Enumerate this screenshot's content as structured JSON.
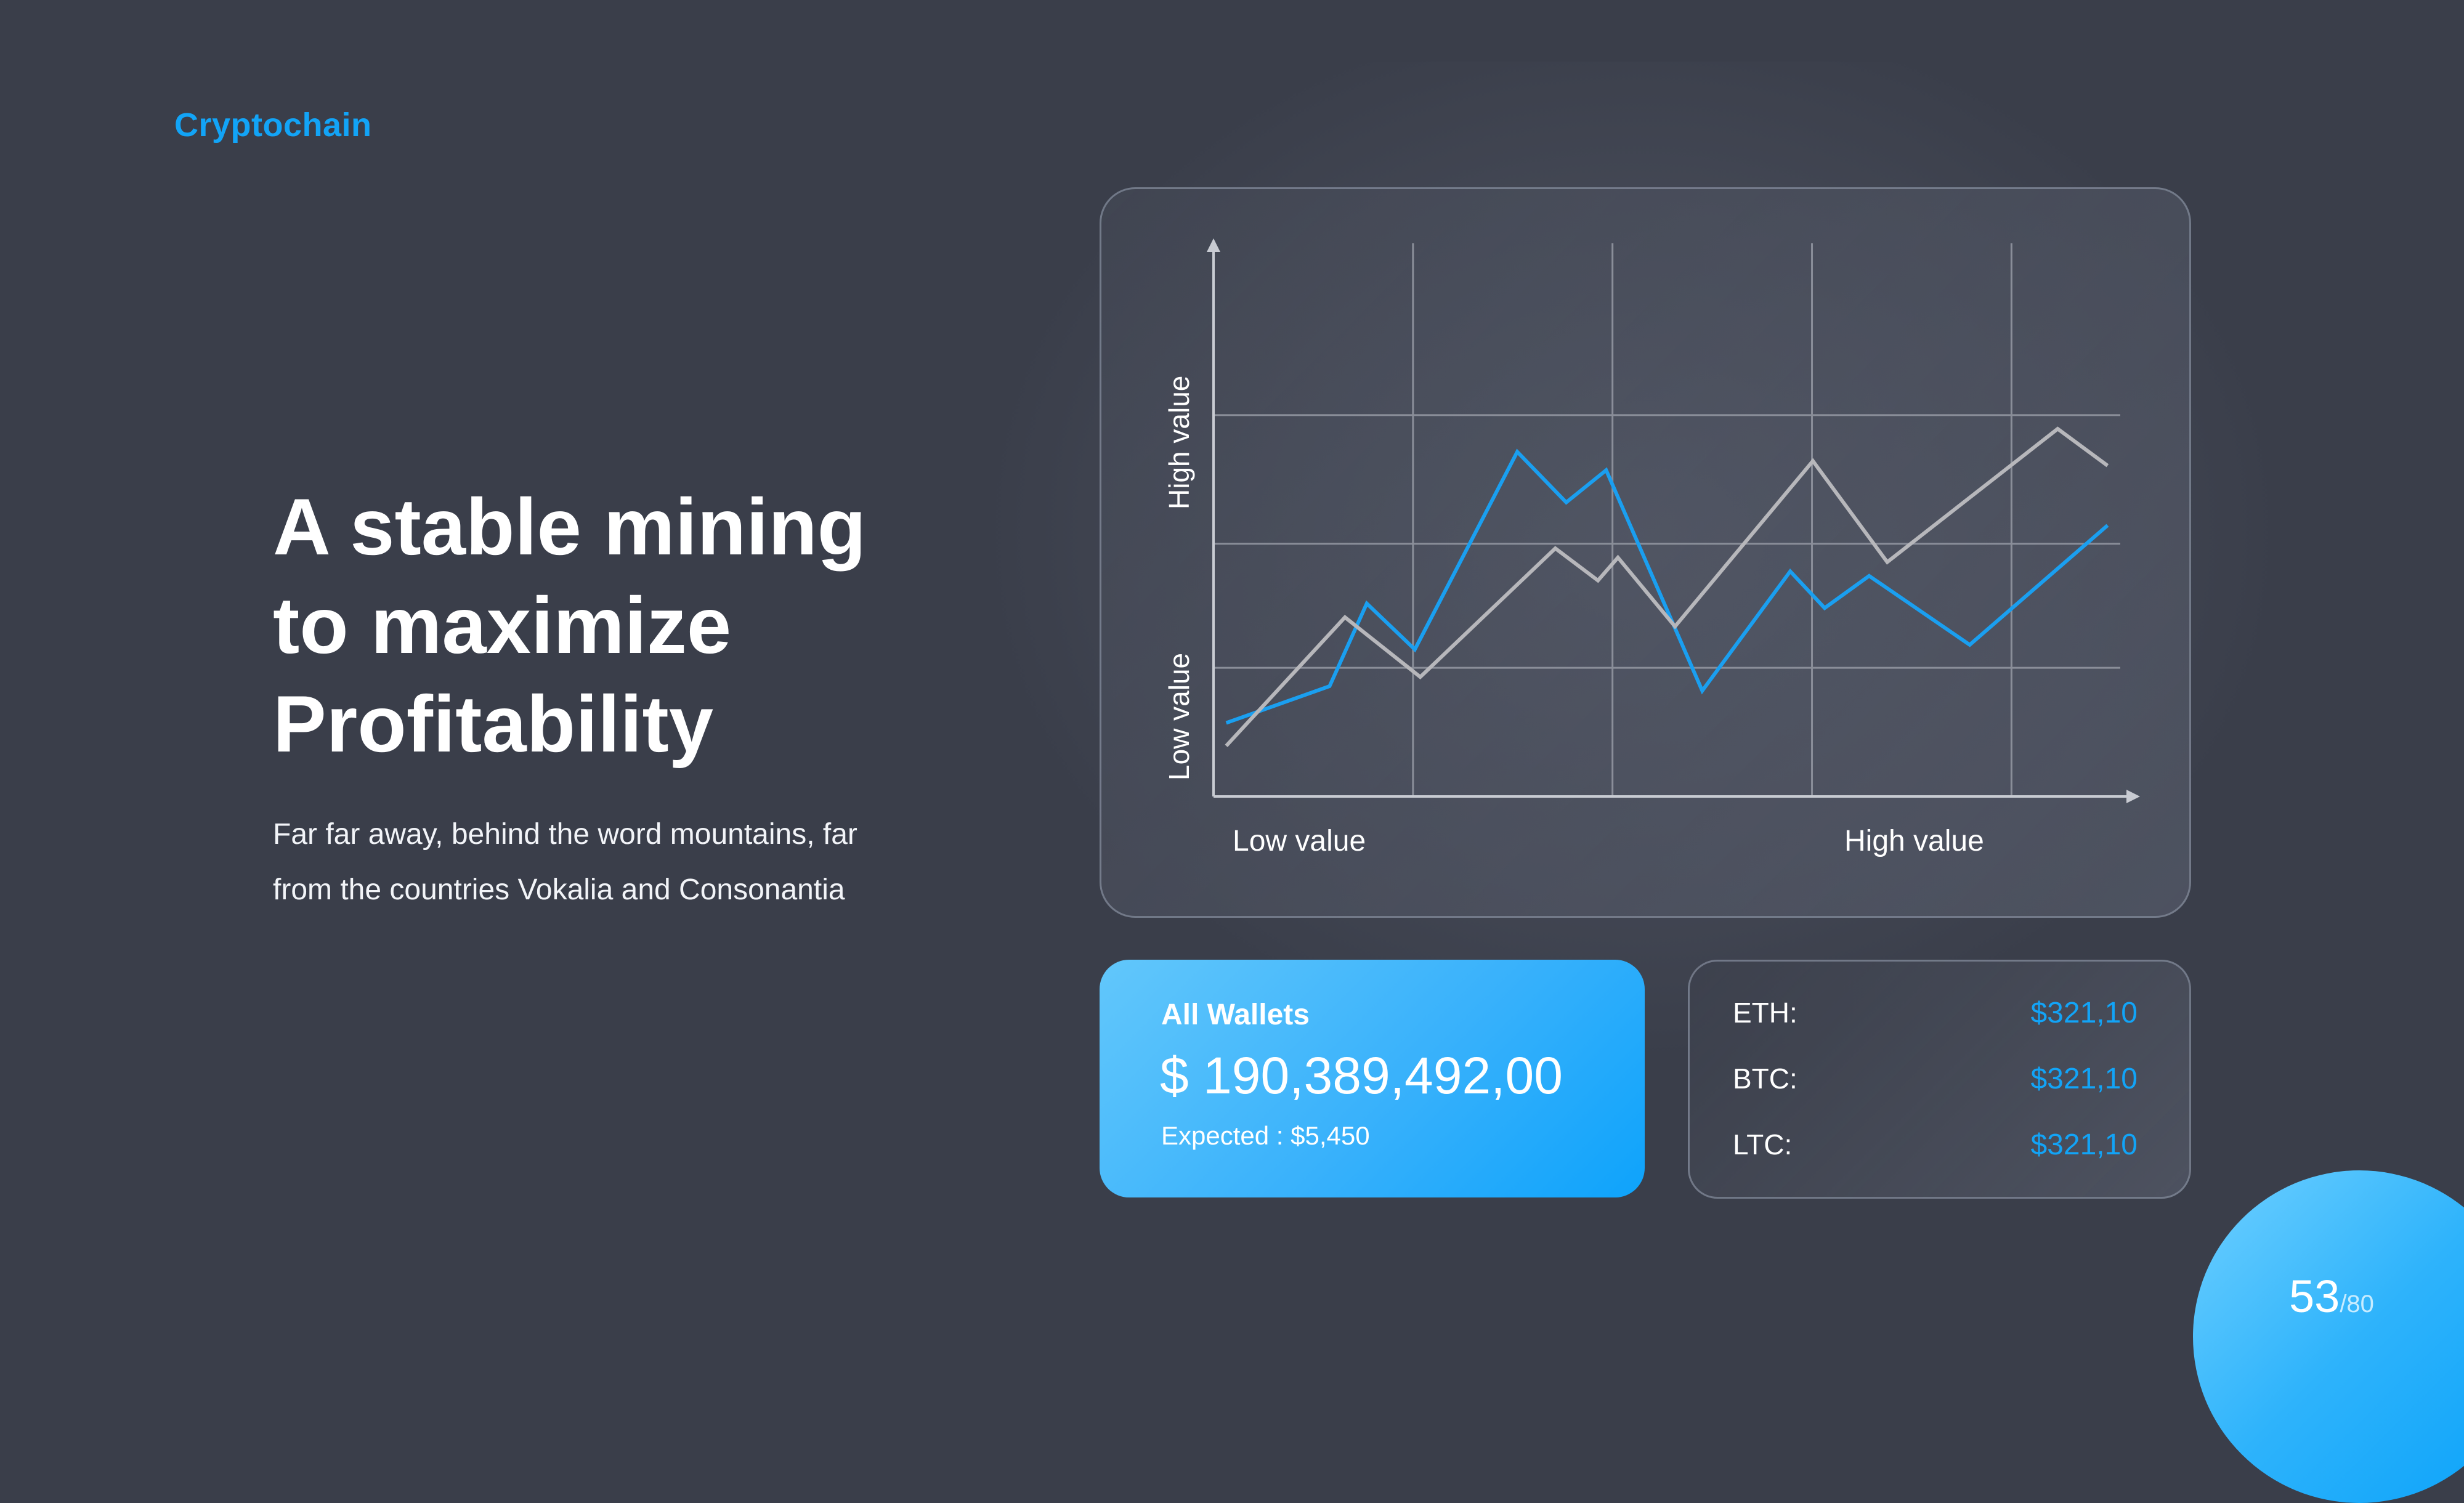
{
  "brand": "Cryptochain",
  "headline": [
    "A stable mining",
    "to maximize",
    "Profitability"
  ],
  "subtitle": [
    "Far far away, behind the word mountains, far",
    "from the countries Vokalia and Consonantia"
  ],
  "chart_data": {
    "type": "line",
    "xlabel_low": "Low value",
    "xlabel_high": "High value",
    "ylabel_low": "Low value",
    "ylabel_high": "High value",
    "xlim": [
      0,
      100
    ],
    "ylim": [
      0,
      100
    ],
    "grid": true,
    "series": [
      {
        "color": "#1a9ff0",
        "points": [
          [
            1.4,
            16
          ],
          [
            12.8,
            24
          ],
          [
            16.9,
            42
          ],
          [
            22.2,
            32
          ],
          [
            33.5,
            75
          ],
          [
            38.9,
            64
          ],
          [
            43.3,
            71
          ],
          [
            53.9,
            23
          ],
          [
            63.6,
            49
          ],
          [
            67.4,
            41
          ],
          [
            72.3,
            48
          ],
          [
            83.4,
            33
          ],
          [
            98.6,
            59
          ]
        ]
      },
      {
        "color": "#b7b7bb",
        "points": [
          [
            1.4,
            11
          ],
          [
            14.5,
            39
          ],
          [
            22.8,
            26
          ],
          [
            37.7,
            54
          ],
          [
            42.4,
            47
          ],
          [
            44.6,
            52
          ],
          [
            50.9,
            37
          ],
          [
            66.1,
            73
          ],
          [
            74.3,
            51
          ],
          [
            93.1,
            80
          ],
          [
            98.6,
            72
          ]
        ]
      }
    ]
  },
  "wallet": {
    "title": "All Wallets",
    "amount": "$ 190,389,492,00",
    "expected": "Expected : $5,450"
  },
  "prices": [
    {
      "coin": "ETH:",
      "value": "$321,10"
    },
    {
      "coin": "BTC:",
      "value": "$321,10"
    },
    {
      "coin": "LTC:",
      "value": "$321,10"
    }
  ],
  "page": {
    "current": "53",
    "total": "/80"
  },
  "colors": {
    "accent": "#12a4f7",
    "background": "#3a3e4a",
    "grey_line": "#b7b7bb"
  }
}
